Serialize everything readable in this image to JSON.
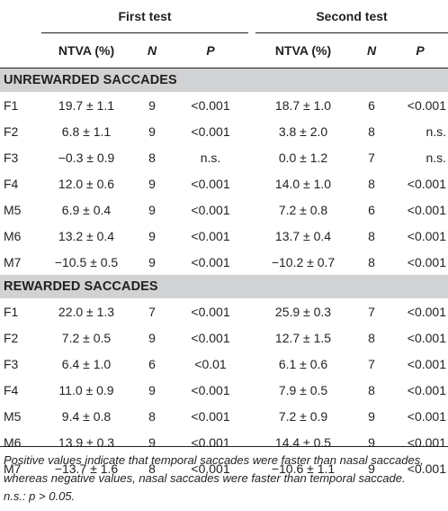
{
  "header": {
    "group1": "First test",
    "group2": "Second test",
    "columns": [
      "NTVA (%)",
      "N",
      "P",
      "NTVA (%)",
      "N",
      "P"
    ]
  },
  "sections": [
    {
      "title": "UNREWARDED SACCADES",
      "rows": [
        [
          "F1",
          "19.7 ± 1.1",
          "9",
          "<0.001",
          "18.7 ± 1.0",
          "6",
          "<0.001"
        ],
        [
          "F2",
          "6.8 ± 1.1",
          "9",
          "<0.001",
          "3.8 ± 2.0",
          "8",
          "n.s."
        ],
        [
          "F3",
          "−0.3 ± 0.9",
          "8",
          "n.s.",
          "0.0 ± 1.2",
          "7",
          "n.s."
        ],
        [
          "F4",
          "12.0 ± 0.6",
          "9",
          "<0.001",
          "14.0 ± 1.0",
          "8",
          "<0.001"
        ],
        [
          "M5",
          "6.9 ± 0.4",
          "9",
          "<0.001",
          "7.2 ± 0.8",
          "6",
          "<0.001"
        ],
        [
          "M6",
          "13.2 ± 0.4",
          "9",
          "<0.001",
          "13.7 ± 0.4",
          "8",
          "<0.001"
        ],
        [
          "M7",
          "−10.5 ± 0.5",
          "9",
          "<0.001",
          "−10.2 ± 0.7",
          "8",
          "<0.001"
        ]
      ]
    },
    {
      "title": "REWARDED SACCADES",
      "rows": [
        [
          "F1",
          "22.0 ± 1.3",
          "7",
          "<0.001",
          "25.9 ± 0.3",
          "7",
          "<0.001"
        ],
        [
          "F2",
          "7.2 ± 0.5",
          "9",
          "<0.001",
          "12.7 ± 1.5",
          "8",
          "<0.001"
        ],
        [
          "F3",
          "6.4 ± 1.0",
          "6",
          "<0.01",
          "6.1 ± 0.6",
          "7",
          "<0.001"
        ],
        [
          "F4",
          "11.0 ± 0.9",
          "9",
          "<0.001",
          "7.9 ± 0.5",
          "8",
          "<0.001"
        ],
        [
          "M5",
          "9.4 ± 0.8",
          "8",
          "<0.001",
          "7.2 ± 0.9",
          "9",
          "<0.001"
        ],
        [
          "M6",
          "13.9 ± 0.3",
          "9",
          "<0.001",
          "14.4 ± 0.5",
          "9",
          "<0.001"
        ],
        [
          "M7",
          "−13.7 ± 1.6",
          "8",
          "<0.001",
          "−10.6 ± 1.1",
          "9",
          "<0.001"
        ]
      ]
    }
  ],
  "footnote": {
    "line1": "Positive values indicate that temporal saccades were faster than nasal saccades,",
    "line2": "whereas negative values, nasal saccades were faster than temporal saccade.",
    "line3": "n.s.: p > 0.05."
  }
}
